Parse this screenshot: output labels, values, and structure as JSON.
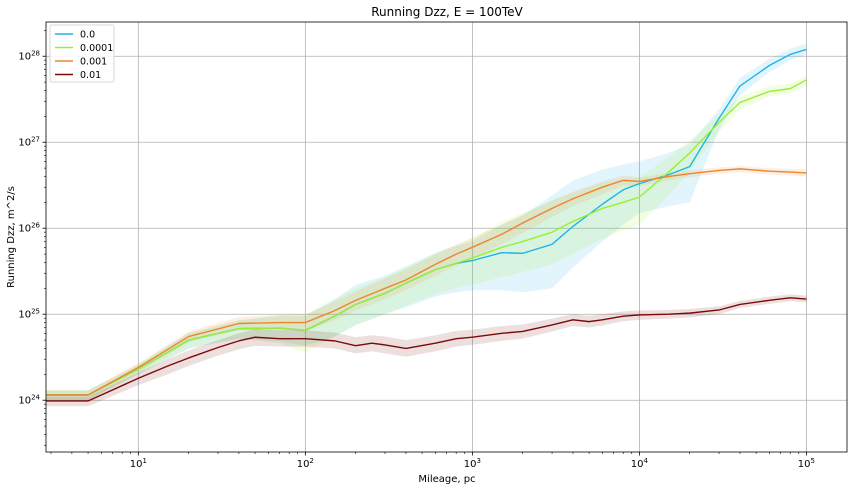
{
  "chart_data": {
    "type": "line",
    "title": "Running Dzz, E = 100TeV",
    "xlabel": "Mileage, pc",
    "ylabel": "Running Dzz, m^2/s",
    "x_scale": "log",
    "y_scale": "log",
    "xlim": [
      2.8,
      175000
    ],
    "ylim": [
      2.5e+23,
      2.5e+28
    ],
    "grid": true,
    "legend_position": "top-left",
    "x_ticks": [
      {
        "value": 10,
        "base": "10",
        "exp": "1"
      },
      {
        "value": 100,
        "base": "10",
        "exp": "2"
      },
      {
        "value": 1000,
        "base": "10",
        "exp": "3"
      },
      {
        "value": 10000,
        "base": "10",
        "exp": "4"
      },
      {
        "value": 100000,
        "base": "10",
        "exp": "5"
      }
    ],
    "y_ticks": [
      {
        "value": 1e+24,
        "base": "10",
        "exp": "24"
      },
      {
        "value": 1e+25,
        "base": "10",
        "exp": "25"
      },
      {
        "value": 1e+26,
        "base": "10",
        "exp": "26"
      },
      {
        "value": 1e+27,
        "base": "10",
        "exp": "27"
      },
      {
        "value": 1e+28,
        "base": "10",
        "exp": "28"
      }
    ],
    "series": [
      {
        "name": "0.0",
        "color": "#1fb5e8",
        "x": [
          2.8,
          5,
          10,
          20,
          40,
          70,
          100,
          150,
          200,
          300,
          400,
          600,
          800,
          1000,
          1500,
          2000,
          3000,
          4000,
          6000,
          8000,
          10000,
          15000,
          20000,
          30000,
          40000,
          60000,
          80000,
          100000
        ],
        "y": [
          1.15e+24,
          1.15e+24,
          2.3e+24,
          5e+24,
          6.8e+24,
          6.9e+24,
          6.5e+24,
          9.5e+24,
          1.3e+25,
          1.75e+25,
          2.3e+25,
          3.3e+25,
          3.9e+25,
          4.2e+25,
          5.2e+25,
          5.1e+25,
          6.5e+25,
          1.05e+26,
          1.9e+26,
          2.8e+26,
          3.3e+26,
          4.2e+26,
          5.2e+26,
          1.9e+27,
          4.5e+27,
          7.8e+27,
          1.05e+28,
          1.2e+28
        ],
        "band_lower": [
          1e+24,
          1e+24,
          2e+24,
          4e+24,
          5.2e+24,
          4.8e+24,
          4.3e+24,
          5.5e+24,
          7.5e+24,
          1e+25,
          1.2e+25,
          1.6e+25,
          1.8e+25,
          1.9e+25,
          1.9e+25,
          1.8e+25,
          2e+25,
          3.5e+25,
          7e+25,
          1.1e+26,
          1.5e+26,
          1.8e+26,
          2e+26,
          1.4e+27,
          3.5e+27,
          6.5e+27,
          9e+27,
          1.05e+28
        ],
        "band_upper": [
          1.3e+24,
          1.3e+24,
          2.6e+24,
          6e+24,
          8.5e+24,
          9.5e+24,
          9.5e+24,
          1.5e+25,
          2.2e+25,
          2.8e+25,
          3.6e+25,
          5.2e+25,
          6.3e+25,
          7e+25,
          1.1e+26,
          1.4e+26,
          2.4e+26,
          3.6e+26,
          4.8e+26,
          5.5e+26,
          6e+26,
          7.5e+26,
          9.5e+26,
          2.4e+27,
          5.6e+27,
          9.3e+27,
          1.22e+28,
          1.4e+28
        ]
      },
      {
        "name": "0.0001",
        "color": "#9aef30",
        "x": [
          2.8,
          5,
          10,
          20,
          40,
          70,
          100,
          150,
          200,
          300,
          400,
          600,
          800,
          1000,
          1500,
          2000,
          3000,
          4000,
          6000,
          8000,
          10000,
          15000,
          20000,
          30000,
          40000,
          60000,
          80000,
          100000
        ],
        "y": [
          1.15e+24,
          1.15e+24,
          2.3e+24,
          5e+24,
          6.8e+24,
          6.9e+24,
          6.5e+24,
          9.5e+24,
          1.3e+25,
          1.75e+25,
          2.3e+25,
          3.3e+25,
          3.9e+25,
          4.5e+25,
          6e+25,
          7e+25,
          9e+25,
          1.2e+26,
          1.7e+26,
          2e+26,
          2.3e+26,
          4.5e+26,
          7.5e+26,
          1.7e+27,
          2.9e+27,
          3.9e+27,
          4.2e+27,
          5.3e+27
        ],
        "band_lower": [
          1e+24,
          1e+24,
          2e+24,
          4e+24,
          5.2e+24,
          4.6e+24,
          3.6e+24,
          5.5e+24,
          7.5e+24,
          1e+25,
          1.25e+25,
          1.7e+25,
          2e+25,
          2.2e+25,
          2.7e+25,
          3.1e+25,
          3.8e+25,
          5e+25,
          7.5e+25,
          9.5e+25,
          1.1e+26,
          2.4e+26,
          4.6e+26,
          1.3e+27,
          2.4e+27,
          3.4e+27,
          3.7e+27,
          4.6e+27
        ],
        "band_upper": [
          1.3e+24,
          1.3e+24,
          2.6e+24,
          6e+24,
          8.5e+24,
          9.8e+24,
          1e+25,
          1.5e+25,
          2e+25,
          2.7e+25,
          3.5e+25,
          5e+25,
          6.2e+25,
          7.5e+25,
          1.2e+26,
          1.5e+26,
          2.1e+26,
          2.6e+26,
          3.4e+26,
          3.7e+26,
          3.9e+26,
          6.7e+26,
          1.05e+27,
          2.1e+27,
          3.4e+27,
          4.5e+27,
          4.8e+27,
          6e+27
        ]
      },
      {
        "name": "0.001",
        "color": "#f0842a",
        "x": [
          2.8,
          5,
          10,
          20,
          40,
          70,
          100,
          150,
          200,
          300,
          400,
          600,
          800,
          1000,
          1500,
          2000,
          3000,
          4000,
          6000,
          8000,
          10000,
          15000,
          20000,
          30000,
          40000,
          60000,
          80000,
          100000
        ],
        "y": [
          1.15e+24,
          1.15e+24,
          2.4e+24,
          5.5e+24,
          7.8e+24,
          8e+24,
          8e+24,
          1.1e+25,
          1.45e+25,
          2e+25,
          2.5e+25,
          3.8e+25,
          5e+25,
          6e+25,
          8.5e+25,
          1.15e+26,
          1.7e+26,
          2.2e+26,
          3e+26,
          3.6e+26,
          3.5e+26,
          4e+26,
          4.3e+26,
          4.7e+26,
          4.9e+26,
          4.6e+26,
          4.5e+26,
          4.4e+26
        ],
        "band_lower": [
          1e+24,
          1e+24,
          2.1e+24,
          4.7e+24,
          6.5e+24,
          6.5e+24,
          6.3e+24,
          8.5e+24,
          1.1e+25,
          1.5e+25,
          1.9e+25,
          2.8e+25,
          3.7e+25,
          4.5e+25,
          6.5e+25,
          8.8e+25,
          1.35e+26,
          1.8e+26,
          2.5e+26,
          3.1e+26,
          3.1e+26,
          3.6e+26,
          3.9e+26,
          4.3e+26,
          4.5e+26,
          4.2e+26,
          4.1e+26,
          4e+26
        ],
        "band_upper": [
          1.3e+24,
          1.3e+24,
          2.7e+24,
          6.3e+24,
          9.3e+24,
          9.8e+24,
          1e+25,
          1.4e+25,
          1.85e+25,
          2.6e+25,
          3.3e+25,
          5e+25,
          6.5e+25,
          7.8e+25,
          1.1e+26,
          1.45e+26,
          2.1e+26,
          2.65e+26,
          3.5e+26,
          4.1e+26,
          3.9e+26,
          4.4e+26,
          4.7e+26,
          5.1e+26,
          5.3e+26,
          5e+26,
          4.9e+26,
          4.8e+26
        ]
      },
      {
        "name": "0.01",
        "color": "#7a0a0a",
        "x": [
          2.8,
          5,
          10,
          15,
          20,
          30,
          40,
          50,
          70,
          100,
          150,
          200,
          250,
          300,
          400,
          600,
          800,
          1000,
          1500,
          2000,
          3000,
          4000,
          5000,
          6000,
          8000,
          10000,
          15000,
          20000,
          30000,
          40000,
          60000,
          80000,
          100000
        ],
        "y": [
          9.8e+23,
          9.8e+23,
          1.8e+24,
          2.5e+24,
          3.1e+24,
          4.1e+24,
          4.9e+24,
          5.4e+24,
          5.2e+24,
          5.2e+24,
          4.9e+24,
          4.3e+24,
          4.6e+24,
          4.4e+24,
          4e+24,
          4.6e+24,
          5.2e+24,
          5.4e+24,
          6e+24,
          6.3e+24,
          7.5e+24,
          8.6e+24,
          8.2e+24,
          8.6e+24,
          9.5e+24,
          9.8e+24,
          1e+25,
          1.03e+25,
          1.12e+25,
          1.3e+25,
          1.45e+25,
          1.55e+25,
          1.5e+25
        ],
        "band_lower": [
          8.5e+23,
          8.5e+23,
          1.5e+24,
          2e+24,
          2.5e+24,
          3.3e+24,
          3.9e+24,
          4.3e+24,
          4.2e+24,
          4.2e+24,
          4e+24,
          3.5e+24,
          3.7e+24,
          3.5e+24,
          3.2e+24,
          3.7e+24,
          4.2e+24,
          4.4e+24,
          4.9e+24,
          5.2e+24,
          6.3e+24,
          7.3e+24,
          7e+24,
          7.4e+24,
          8.3e+24,
          8.6e+24,
          8.9e+24,
          9.2e+24,
          1e+25,
          1.18e+25,
          1.32e+25,
          1.42e+25,
          1.38e+25
        ],
        "band_upper": [
          1.1e+24,
          1.1e+24,
          2.1e+24,
          3e+24,
          3.8e+24,
          5e+24,
          6e+24,
          6.7e+24,
          6.5e+24,
          6.5e+24,
          6.1e+24,
          5.4e+24,
          5.7e+24,
          5.5e+24,
          5e+24,
          5.7e+24,
          6.4e+24,
          6.6e+24,
          7.3e+24,
          7.6e+24,
          8.9e+24,
          1e+25,
          9.6e+24,
          1e+25,
          1.08e+25,
          1.11e+25,
          1.12e+25,
          1.15e+25,
          1.24e+25,
          1.43e+25,
          1.6e+25,
          1.7e+25,
          1.65e+25
        ]
      }
    ]
  }
}
